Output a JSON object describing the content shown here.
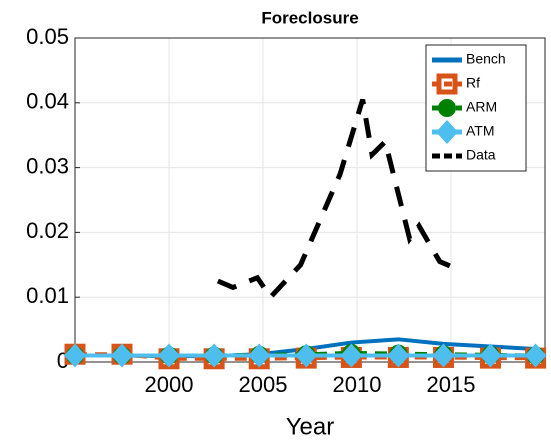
{
  "chart_data": {
    "type": "line",
    "title": "Foreclosure",
    "x_label": "Year",
    "xlim": [
      1995,
      2020
    ],
    "xticks": [
      2000,
      2005,
      2010,
      2015
    ],
    "ylim": [
      0,
      0.05
    ],
    "yticks": [
      0,
      0.01,
      0.02,
      0.03,
      0.04,
      0.05
    ],
    "grid": true,
    "legend": "northeast",
    "series": [
      {
        "name": "Bench",
        "color": "#0072bd",
        "style": "solid",
        "marker": "none",
        "x": [
          1995,
          1997.5,
          2000,
          2002.4,
          2004.8,
          2007.3,
          2009.7,
          2012.2,
          2014.6,
          2017.1,
          2019.5
        ],
        "values": [
          0.001,
          0.001,
          0.0009,
          0.0009,
          0.0012,
          0.002,
          0.003,
          0.0035,
          0.0028,
          0.0024,
          0.002
        ]
      },
      {
        "name": "Rf",
        "color": "#d95319",
        "style": "dashed",
        "marker": "square",
        "x": [
          1995,
          1997.5,
          2000,
          2002.4,
          2004.8,
          2007.3,
          2009.7,
          2012.2,
          2014.6,
          2017.1,
          2019.5
        ],
        "values": [
          0.0012,
          0.0012,
          0.0005,
          0.0005,
          0.0005,
          0.0006,
          0.0007,
          0.0007,
          0.0007,
          0.0006,
          0.0006
        ]
      },
      {
        "name": "ARM",
        "color": "#008000",
        "style": "dashed",
        "marker": "circle",
        "x": [
          1995,
          1997.5,
          2000,
          2002.4,
          2004.8,
          2007.3,
          2009.7,
          2012.2,
          2014.6,
          2017.1,
          2019.5
        ],
        "values": [
          0.001,
          0.001,
          0.001,
          0.001,
          0.0011,
          0.0012,
          0.0014,
          0.0013,
          0.0012,
          0.0011,
          0.001
        ]
      },
      {
        "name": "ATM",
        "color": "#4dbeee",
        "style": "solid",
        "marker": "diamond",
        "x": [
          1995,
          1997.5,
          2000,
          2002.4,
          2004.8,
          2007.3,
          2009.7,
          2012.2,
          2014.6,
          2017.1,
          2019.5
        ],
        "values": [
          0.001,
          0.001,
          0.001,
          0.001,
          0.001,
          0.001,
          0.001,
          0.001,
          0.001,
          0.001,
          0.001
        ]
      },
      {
        "name": "Data",
        "color": "#000000",
        "style": "dashed",
        "marker": "none",
        "x": [
          2002.6,
          2003.4,
          2004.7,
          2005.4,
          2007,
          2009.1,
          2010.3,
          2010.8,
          2011.5,
          2012.8,
          2013.3,
          2014.4,
          2015.2
        ],
        "values": [
          0.0125,
          0.0115,
          0.013,
          0.01,
          0.015,
          0.029,
          0.0405,
          0.032,
          0.034,
          0.019,
          0.021,
          0.0155,
          0.0145
        ]
      }
    ]
  }
}
